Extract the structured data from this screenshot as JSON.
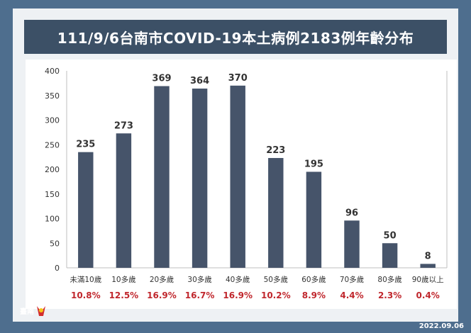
{
  "title": "111/9/6台南市COVID-19本土病例2183例年齡分布",
  "date_stamp": "2022.09.06",
  "colors": {
    "background": "#4e6e8e",
    "title_bar": "#3c5066",
    "bar": "#46546a",
    "percent_text": "#c0272d",
    "label_text": "#333333"
  },
  "logo": {
    "icon": "tainan-city-logo",
    "alt_text": "臺南"
  },
  "chart_data": {
    "type": "bar",
    "title": "111/9/6台南市COVID-19本土病例2183例年齡分布",
    "categories": [
      "未滿10歲",
      "10多歲",
      "20多歲",
      "30多歲",
      "40多歲",
      "50多歲",
      "60多歲",
      "70多歲",
      "80多歲",
      "90歲以上"
    ],
    "values": [
      235,
      273,
      369,
      364,
      370,
      223,
      195,
      96,
      50,
      8
    ],
    "percentages": [
      "10.8%",
      "12.5%",
      "16.9%",
      "16.7%",
      "16.9%",
      "10.2%",
      "8.9%",
      "4.4%",
      "2.3%",
      "0.4%"
    ],
    "ylim": [
      0,
      400
    ],
    "yticks": [
      0,
      50,
      100,
      150,
      200,
      250,
      300,
      350,
      400
    ],
    "grid": false,
    "legend": "none"
  }
}
